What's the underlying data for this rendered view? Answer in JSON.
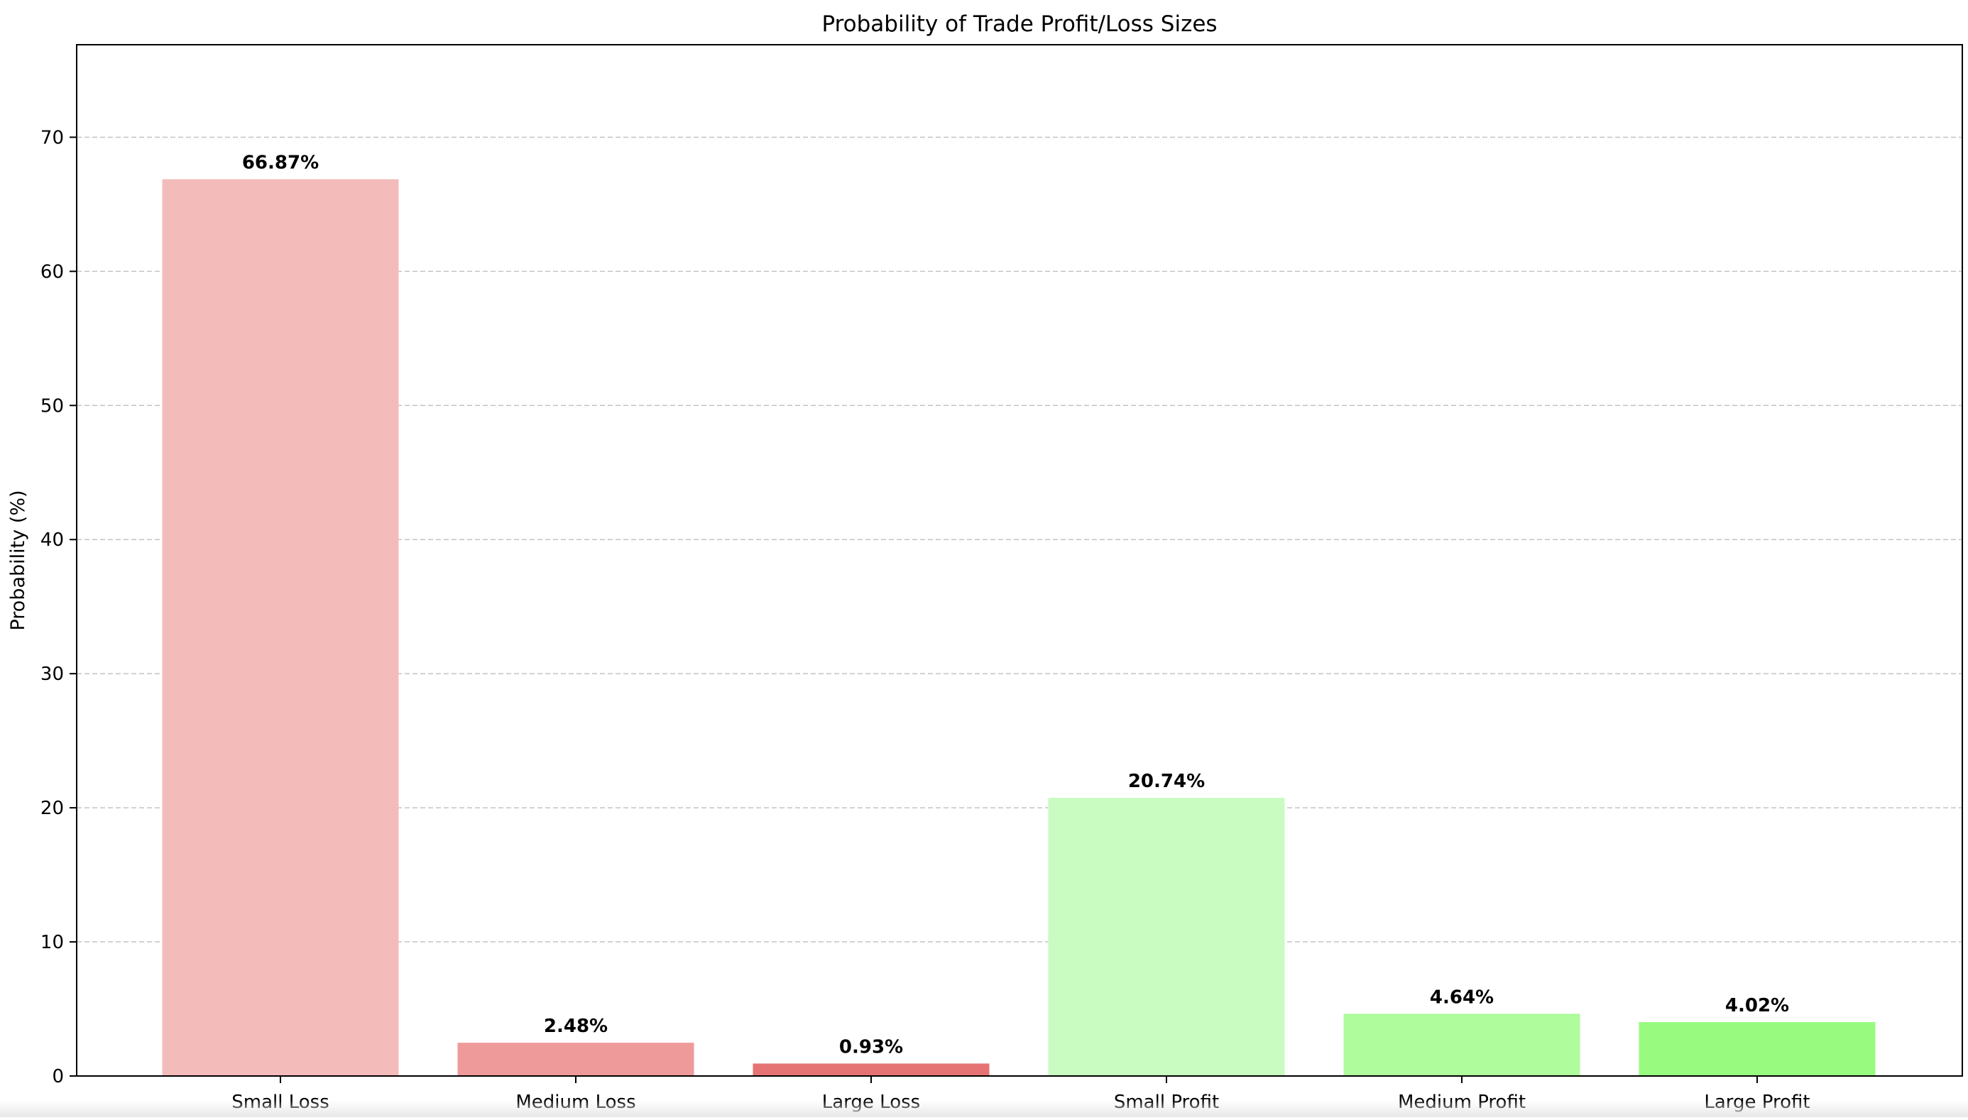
{
  "chart_data": {
    "type": "bar",
    "title": "Probability of Trade Profit/Loss Sizes",
    "xlabel": "",
    "ylabel": "Probability (%)",
    "categories": [
      "Small Loss",
      "Medium Loss",
      "Large Loss",
      "Small Profit",
      "Medium Profit",
      "Large Profit"
    ],
    "values": [
      66.87,
      2.48,
      0.93,
      20.74,
      4.64,
      4.02
    ],
    "data_labels": [
      "66.87%",
      "2.48%",
      "0.93%",
      "20.74%",
      "4.64%",
      "4.02%"
    ],
    "colors": [
      "#f4bbbb",
      "#ef9a9a",
      "#e57373",
      "#c8fcc0",
      "#aefc9c",
      "#98fb80"
    ],
    "ylim": [
      0,
      76.9
    ],
    "yticks": [
      0,
      10,
      20,
      30,
      40,
      50,
      60,
      70
    ],
    "grid": "y-dashed",
    "legend": "none"
  }
}
